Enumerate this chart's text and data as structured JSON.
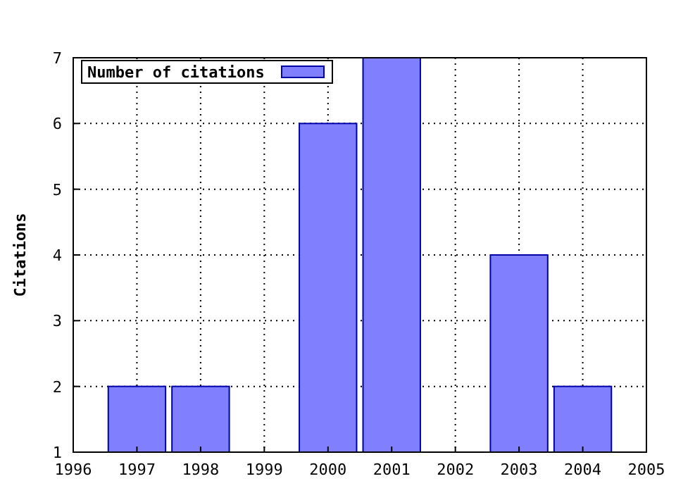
{
  "chart_data": {
    "type": "bar",
    "ylabel": "Citations",
    "x": [
      1997,
      1998,
      2000,
      2001,
      2003,
      2004
    ],
    "series": [
      {
        "name": "Number of citations",
        "color": "#8080ff",
        "values": [
          2,
          2,
          6,
          7,
          4,
          2
        ]
      }
    ],
    "xlim": [
      1996,
      2005
    ],
    "xticks": [
      1996,
      1997,
      1998,
      1999,
      2000,
      2001,
      2002,
      2003,
      2004,
      2005
    ],
    "ylim": [
      1,
      7
    ],
    "yticks": [
      1,
      2,
      3,
      4,
      5,
      6,
      7
    ],
    "grid": true,
    "legend": "top left"
  }
}
